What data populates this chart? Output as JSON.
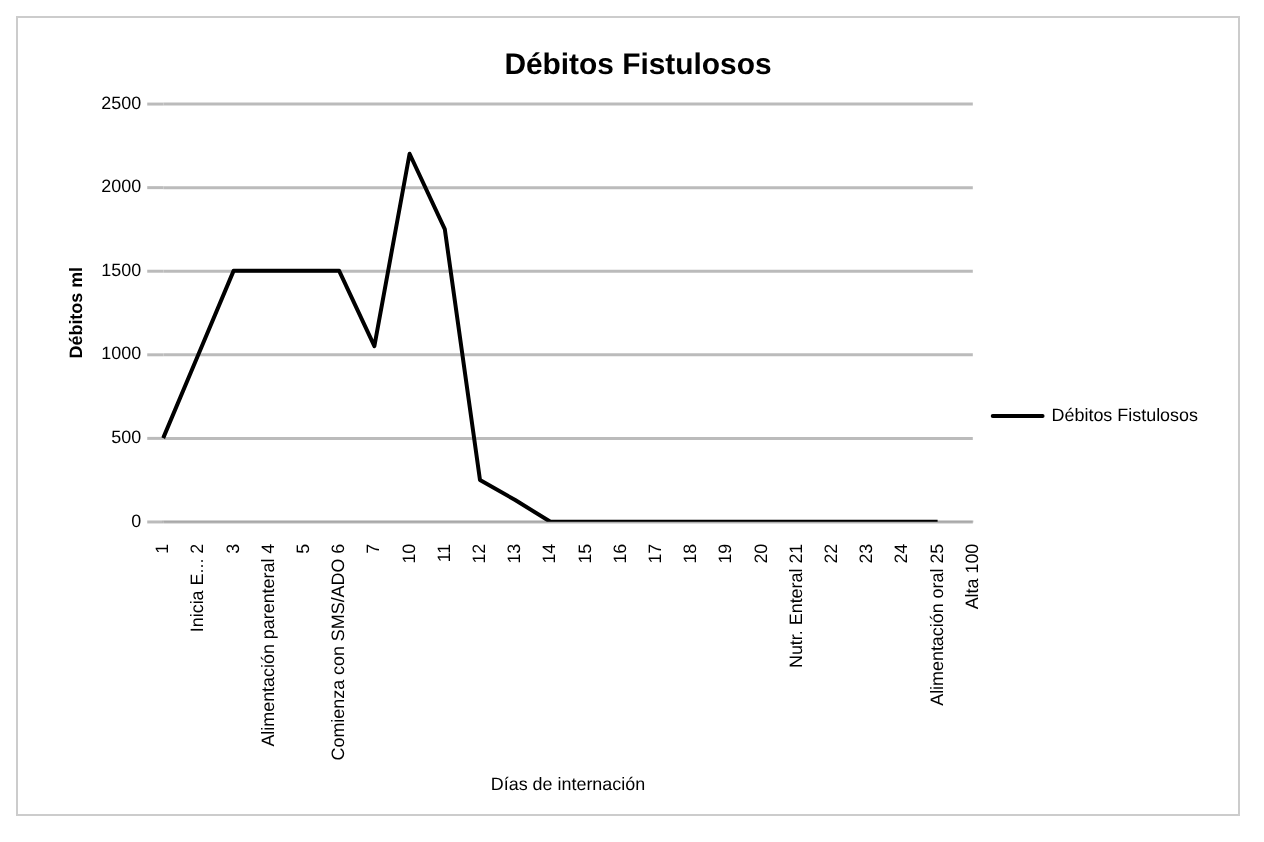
{
  "chart_data": {
    "type": "line",
    "title": "Débitos Fistulosos",
    "xlabel": "Días de internación",
    "ylabel": "Débitos ml",
    "categories": [
      "1",
      "Inicia E... 2",
      "3",
      "Alimentación parenteral 4",
      "5",
      "Comienza con SMS/ADO 6",
      "7",
      "10",
      "11",
      "12",
      "13",
      "14",
      "15",
      "16",
      "17",
      "18",
      "19",
      "20",
      "Nutr. Enteral 21",
      "22",
      "23",
      "24",
      "Alimentación oral 25",
      "Alta 100"
    ],
    "series": [
      {
        "name": "Débitos Fistulosos",
        "color": "#000000",
        "values": [
          500,
          1000,
          1500,
          1500,
          1500,
          1500,
          1050,
          2200,
          1750,
          250,
          130,
          0,
          0,
          0,
          0,
          0,
          0,
          0,
          0,
          0,
          0,
          0,
          0,
          null
        ]
      }
    ],
    "ylim": [
      0,
      2500
    ],
    "yticks": [
      0,
      500,
      1000,
      1500,
      2000,
      2500
    ],
    "grid": "y",
    "legend": "right",
    "marker": "none",
    "line_style": "solid"
  }
}
